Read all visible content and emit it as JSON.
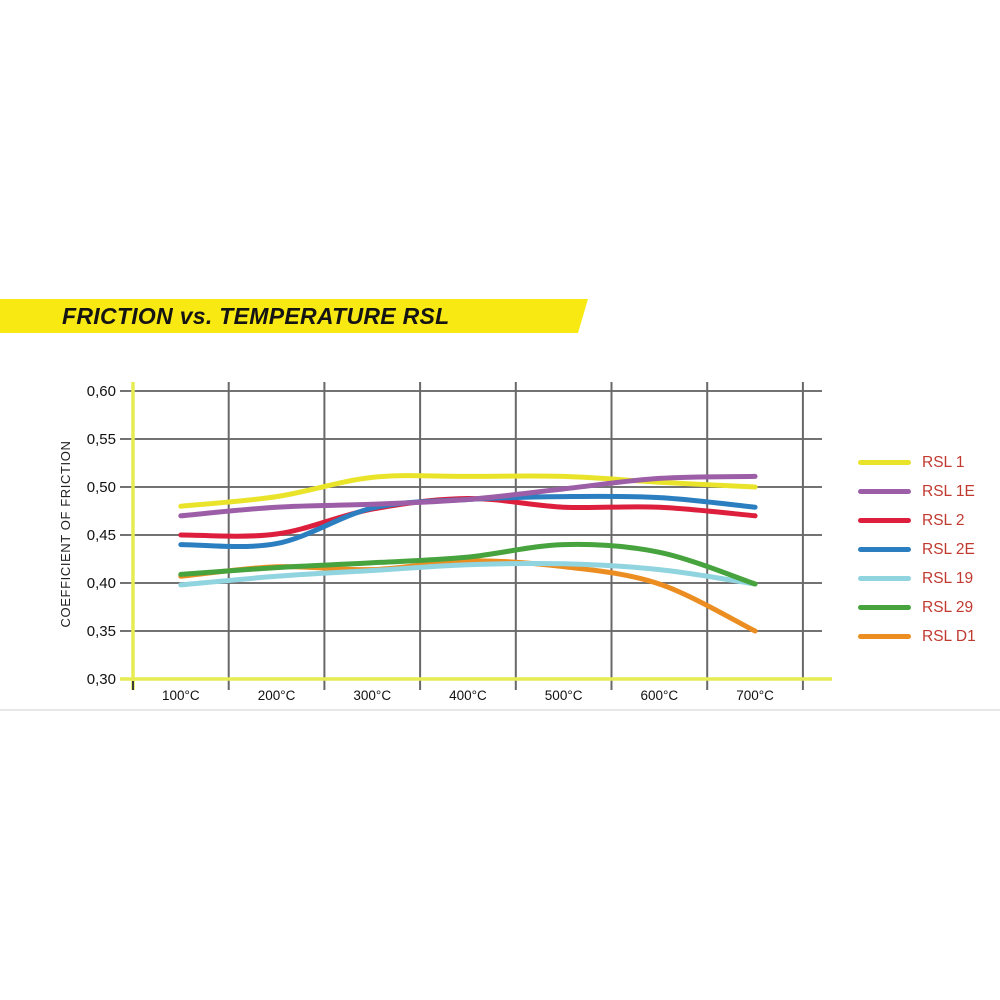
{
  "banner": {
    "title": "FRICTION vs. TEMPERATURE RSL",
    "bg_color": "#f9e912",
    "text_color": "#141414"
  },
  "chart_data": {
    "type": "line",
    "title": "FRICTION vs. TEMPERATURE RSL",
    "xlabel": "",
    "ylabel": "COEFFICIENT OF FRICTION",
    "categories": [
      "100°C",
      "200°C",
      "300°C",
      "400°C",
      "500°C",
      "600°C",
      "700°C"
    ],
    "series": [
      {
        "name": "RSL 1",
        "color": "#e9e42a",
        "values": [
          0.48,
          0.49,
          0.51,
          0.511,
          0.511,
          0.505,
          0.5
        ]
      },
      {
        "name": "RSL 1E",
        "color": "#9c5fa7",
        "values": [
          0.47,
          0.479,
          0.482,
          0.487,
          0.498,
          0.509,
          0.511
        ]
      },
      {
        "name": "RSL 2",
        "color": "#dd1f3d",
        "values": [
          0.45,
          0.451,
          0.477,
          0.488,
          0.479,
          0.479,
          0.47
        ]
      },
      {
        "name": "RSL 2E",
        "color": "#2b7fc0",
        "values": [
          0.44,
          0.441,
          0.478,
          0.487,
          0.49,
          0.489,
          0.479
        ]
      },
      {
        "name": "RSL 19",
        "color": "#8fd4df",
        "values": [
          0.398,
          0.407,
          0.413,
          0.419,
          0.42,
          0.414,
          0.399
        ]
      },
      {
        "name": "RSL 29",
        "color": "#47a33e",
        "values": [
          0.409,
          0.416,
          0.421,
          0.427,
          0.44,
          0.432,
          0.399
        ]
      },
      {
        "name": "RSL D1",
        "color": "#ec8d21",
        "values": [
          0.407,
          0.417,
          0.414,
          0.423,
          0.417,
          0.399,
          0.35
        ]
      }
    ],
    "ylim": [
      0.3,
      0.6
    ],
    "y_tick_step": 0.05,
    "y_tick_labels": [
      "0,60",
      "0,55",
      "0,50",
      "0,45",
      "0,40",
      "0,35",
      "0,30"
    ],
    "grid": true,
    "legend_position": "right",
    "legend_text_color": "#c03a30",
    "axis_color": "#e6ec52",
    "grid_color": "#737373",
    "vgrid_color": "#686868",
    "tick_color": "#3c3c3c"
  }
}
